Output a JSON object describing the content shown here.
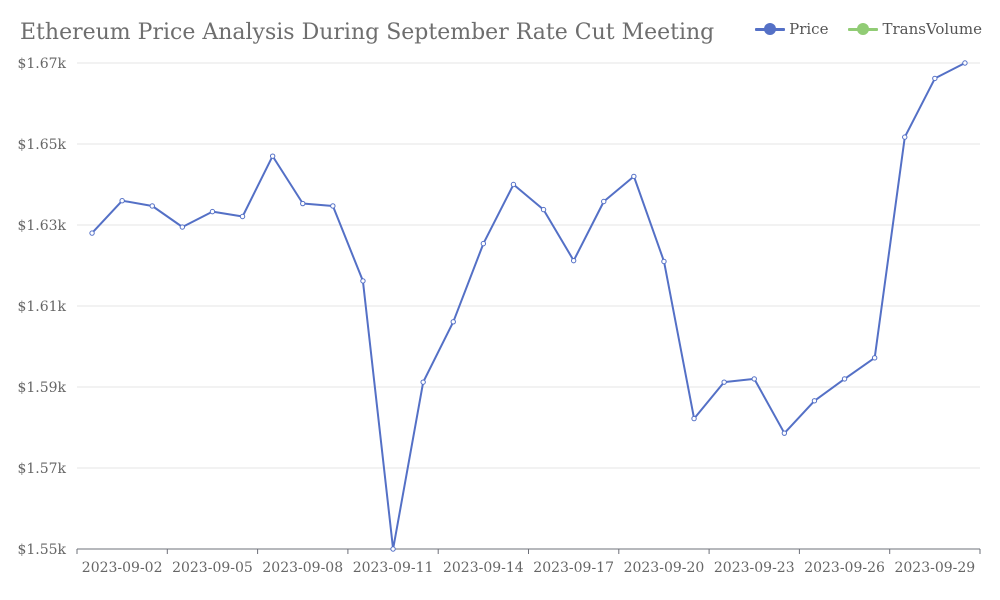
{
  "chart_data": {
    "type": "line",
    "title": "Ethereum Price Analysis During September Rate Cut Meeting",
    "xlabel": "",
    "ylabel": "",
    "ylim": [
      1550,
      1670
    ],
    "yticks": [
      1550,
      1570,
      1590,
      1610,
      1630,
      1650,
      1670
    ],
    "ytick_labels": [
      "$1.55k",
      "$1.57k",
      "$1.59k",
      "$1.61k",
      "$1.63k",
      "$1.65k",
      "$1.67k"
    ],
    "x": [
      "2023-09-01",
      "2023-09-02",
      "2023-09-03",
      "2023-09-04",
      "2023-09-05",
      "2023-09-06",
      "2023-09-07",
      "2023-09-08",
      "2023-09-09",
      "2023-09-10",
      "2023-09-11",
      "2023-09-12",
      "2023-09-13",
      "2023-09-14",
      "2023-09-15",
      "2023-09-16",
      "2023-09-17",
      "2023-09-18",
      "2023-09-19",
      "2023-09-20",
      "2023-09-21",
      "2023-09-22",
      "2023-09-23",
      "2023-09-24",
      "2023-09-25",
      "2023-09-26",
      "2023-09-27",
      "2023-09-28",
      "2023-09-29",
      "2023-09-30"
    ],
    "xtick_labels": [
      "2023-09-02",
      "2023-09-05",
      "2023-09-08",
      "2023-09-11",
      "2023-09-14",
      "2023-09-17",
      "2023-09-20",
      "2023-09-23",
      "2023-09-26",
      "2023-09-29"
    ],
    "series": [
      {
        "name": "Price",
        "color": "#5470c6",
        "values": [
          1628.0,
          1636.0,
          1634.7,
          1629.5,
          1633.3,
          1632.1,
          1647.0,
          1635.3,
          1634.7,
          1616.2,
          1550.0,
          1591.2,
          1606.1,
          1625.4,
          1640.0,
          1633.8,
          1621.2,
          1635.8,
          1642.0,
          1621.0,
          1582.2,
          1591.2,
          1592.0,
          1578.6,
          1586.6,
          1592.0,
          1597.2,
          1651.7,
          1666.2,
          1670.0
        ]
      }
    ],
    "legend": [
      {
        "name": "Price",
        "color": "#5470c6"
      },
      {
        "name": "TransVolume",
        "color": "#91cc75"
      }
    ],
    "legend_position": "top-right",
    "grid": true
  }
}
